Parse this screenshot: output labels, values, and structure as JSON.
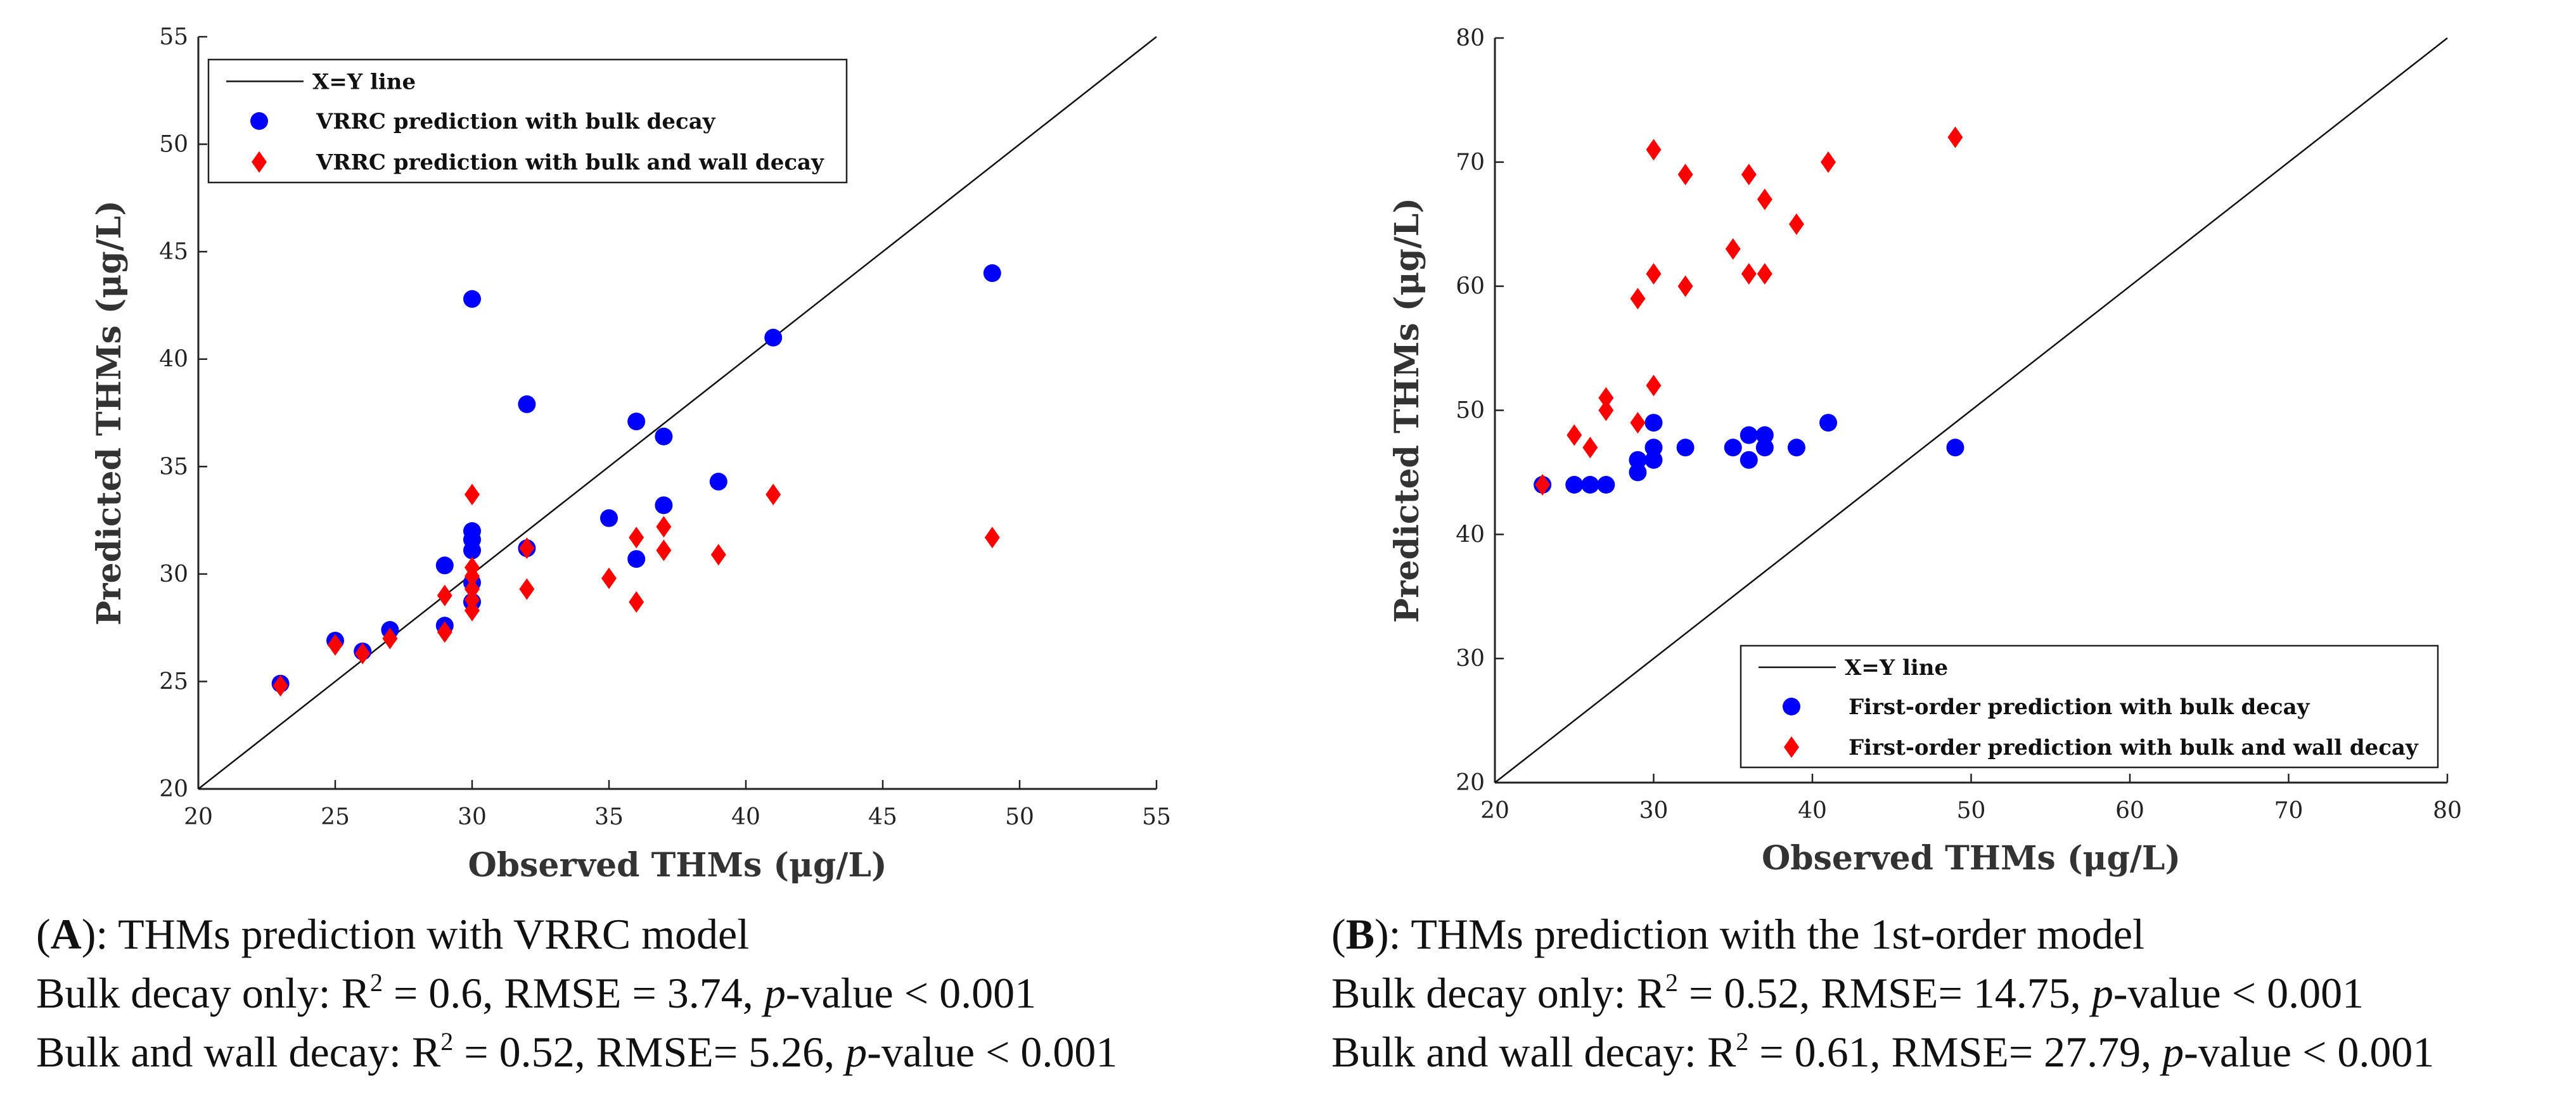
{
  "chart_data": [
    {
      "type": "scatter",
      "xlabel": "Observed THMs (μg/L)",
      "ylabel": "Predicted THMs (μg/L)",
      "xlim": [
        20,
        55
      ],
      "ylim": [
        20,
        55
      ],
      "xticks": [
        20,
        25,
        30,
        35,
        40,
        45,
        50,
        55
      ],
      "yticks": [
        20,
        25,
        30,
        35,
        40,
        45,
        50,
        55
      ],
      "legend_position": "top-left",
      "reference_line": {
        "name": "X=Y line",
        "points": [
          [
            20,
            20
          ],
          [
            55,
            55
          ]
        ]
      },
      "series": [
        {
          "name": "VRRC prediction with bulk decay",
          "marker": "circle",
          "color": "#0000ff",
          "points": [
            [
              23,
              24.9
            ],
            [
              25,
              26.9
            ],
            [
              26,
              26.4
            ],
            [
              27,
              27.4
            ],
            [
              29,
              27.6
            ],
            [
              29,
              30.4
            ],
            [
              30,
              28.7
            ],
            [
              30,
              29.6
            ],
            [
              30,
              31.1
            ],
            [
              30,
              31.6
            ],
            [
              30,
              32.0
            ],
            [
              30,
              42.8
            ],
            [
              32,
              31.2
            ],
            [
              32,
              37.9
            ],
            [
              35,
              32.6
            ],
            [
              36,
              30.7
            ],
            [
              36,
              37.1
            ],
            [
              37,
              33.2
            ],
            [
              37,
              36.4
            ],
            [
              39,
              34.3
            ],
            [
              41,
              41.0
            ],
            [
              49,
              44.0
            ]
          ]
        },
        {
          "name": "VRRC prediction with bulk and wall decay",
          "marker": "diamond",
          "color": "#ff0000",
          "points": [
            [
              23,
              24.8
            ],
            [
              25,
              26.7
            ],
            [
              26,
              26.3
            ],
            [
              27,
              27.0
            ],
            [
              29,
              27.3
            ],
            [
              29,
              29.0
            ],
            [
              30,
              28.3
            ],
            [
              30,
              28.8
            ],
            [
              30,
              29.3
            ],
            [
              30,
              29.9
            ],
            [
              30,
              30.3
            ],
            [
              30,
              33.7
            ],
            [
              32,
              29.3
            ],
            [
              32,
              31.2
            ],
            [
              35,
              29.8
            ],
            [
              36,
              28.7
            ],
            [
              36,
              31.7
            ],
            [
              37,
              31.1
            ],
            [
              37,
              32.2
            ],
            [
              39,
              30.9
            ],
            [
              41,
              33.7
            ],
            [
              49,
              31.7
            ]
          ]
        }
      ]
    },
    {
      "type": "scatter",
      "xlabel": "Observed THMs (μg/L)",
      "ylabel": "Predicted THMs (μg/L)",
      "xlim": [
        20,
        80
      ],
      "ylim": [
        20,
        80
      ],
      "xticks": [
        20,
        30,
        40,
        50,
        60,
        70,
        80
      ],
      "yticks": [
        20,
        30,
        40,
        50,
        60,
        70,
        80
      ],
      "legend_position": "bottom-right",
      "reference_line": {
        "name": "X=Y line",
        "points": [
          [
            20,
            20
          ],
          [
            80,
            80
          ]
        ]
      },
      "series": [
        {
          "name": "First-order prediction with bulk decay",
          "marker": "circle",
          "color": "#0000ff",
          "points": [
            [
              23,
              44
            ],
            [
              25,
              44
            ],
            [
              26,
              44
            ],
            [
              27,
              44
            ],
            [
              29,
              45
            ],
            [
              29,
              46
            ],
            [
              30,
              46
            ],
            [
              30,
              47
            ],
            [
              30,
              49
            ],
            [
              32,
              47
            ],
            [
              35,
              47
            ],
            [
              36,
              46
            ],
            [
              36,
              48
            ],
            [
              37,
              47
            ],
            [
              37,
              48
            ],
            [
              39,
              47
            ],
            [
              41,
              49
            ],
            [
              49,
              47
            ]
          ]
        },
        {
          "name": "First-order prediction with bulk and wall decay",
          "marker": "diamond",
          "color": "#ff0000",
          "points": [
            [
              23,
              44
            ],
            [
              25,
              48
            ],
            [
              26,
              47
            ],
            [
              27,
              50
            ],
            [
              27,
              51
            ],
            [
              29,
              49
            ],
            [
              29,
              59
            ],
            [
              30,
              52
            ],
            [
              30,
              61
            ],
            [
              30,
              71
            ],
            [
              32,
              60
            ],
            [
              32,
              69
            ],
            [
              35,
              63
            ],
            [
              36,
              61
            ],
            [
              36,
              69
            ],
            [
              37,
              61
            ],
            [
              37,
              67
            ],
            [
              39,
              65
            ],
            [
              41,
              70
            ],
            [
              49,
              72
            ]
          ]
        }
      ]
    }
  ],
  "captions": [
    {
      "panel_prefix": "(",
      "panel_letter": "A",
      "panel_suffix": "): THMs prediction with VRRC model",
      "line2": {
        "pre": "Bulk decay only: R",
        "sup": "2",
        "mid": " = 0.6, RMSE = 3.74, ",
        "p": "p",
        "post": "-value < 0.001"
      },
      "line3": {
        "pre": "Bulk and wall decay: R",
        "sup": "2",
        "mid": " = 0.52, RMSE= 5.26, ",
        "p": "p",
        "post": "-value < 0.001"
      }
    },
    {
      "panel_prefix": "(",
      "panel_letter": "B",
      "panel_suffix": "): THMs prediction with the 1st-order model",
      "line2": {
        "pre": "Bulk decay only: R",
        "sup": "2",
        "mid": " = 0.52, RMSE= 14.75, ",
        "p": "p",
        "post": "-value < 0.001"
      },
      "line3": {
        "pre": "Bulk and wall decay: R",
        "sup": "2",
        "mid": " = 0.61, RMSE= 27.79, ",
        "p": "p",
        "post": "-value < 0.001"
      }
    }
  ]
}
